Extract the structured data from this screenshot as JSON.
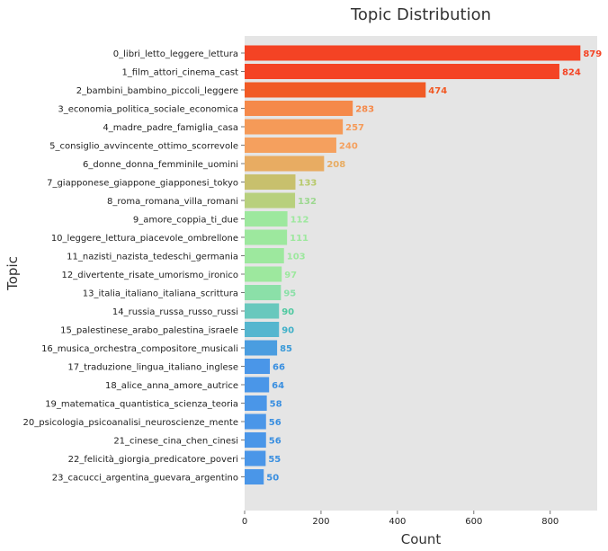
{
  "chart_data": {
    "type": "bar",
    "orientation": "horizontal",
    "title": "Topic Distribution",
    "xlabel": "Count",
    "ylabel": "Topic",
    "xlim": [
      0,
      923
    ],
    "xticks": [
      0,
      200,
      400,
      600,
      800
    ],
    "grid": false,
    "legend": "none",
    "background": "#e5e5e5",
    "categories": [
      "0_libri_letto_leggere_lettura",
      "1_film_attori_cinema_cast",
      "2_bambini_bambino_piccoli_leggere",
      "3_economia_politica_sociale_economica",
      "4_madre_padre_famiglia_casa",
      "5_consiglio_avvincente_ottimo_scorrevole",
      "6_donne_donna_femminile_uomini",
      "7_giapponese_giappone_giapponesi_tokyo",
      "8_roma_romana_villa_romani",
      "9_amore_coppia_ti_due",
      "10_leggere_lettura_piacevole_ombrellone",
      "11_nazisti_nazista_tedeschi_germania",
      "12_divertente_risate_umorismo_ironico",
      "13_italia_italiano_italiana_scrittura",
      "14_russia_russa_russo_russi",
      "15_palestinese_arabo_palestina_israele",
      "16_musica_orchestra_compositore_musicali",
      "17_traduzione_lingua_italiano_inglese",
      "18_alice_anna_amore_autrice",
      "19_matematica_quantistica_scienza_teoria",
      "20_psicologia_psicoanalisi_neuroscienze_mente",
      "21_cinese_cina_chen_cinesi",
      "22_felicità_giorgia_predicatore_poveri",
      "23_cacucci_argentina_guevara_argentino"
    ],
    "values": [
      879,
      824,
      474,
      283,
      257,
      240,
      208,
      133,
      132,
      112,
      111,
      103,
      97,
      95,
      90,
      90,
      85,
      66,
      64,
      58,
      56,
      56,
      55,
      50
    ],
    "colors": [
      "#f44324",
      "#f44324",
      "#f15a25",
      "#f5894a",
      "#f59a58",
      "#f5a05e",
      "#e8ac62",
      "#c8c06d",
      "#b8d07d",
      "#9de89e",
      "#9de89e",
      "#9de89e",
      "#9de89e",
      "#8be0a8",
      "#68c8bd",
      "#55b6cf",
      "#4a9de0",
      "#4a96e8",
      "#4a96e8",
      "#4a96e8",
      "#4a96e8",
      "#4a96e8",
      "#4a96e8",
      "#4a96e8"
    ],
    "label_colors": [
      "#f44324",
      "#f44324",
      "#f15a25",
      "#f5894a",
      "#f59a58",
      "#f5a05e",
      "#e8ac62",
      "#b7c96a",
      "#9dd890",
      "#9de89e",
      "#9de89e",
      "#9de89e",
      "#9de89e",
      "#8be0a8",
      "#4fc9a0",
      "#3fb0c8",
      "#3a9ad8",
      "#3a8fe0",
      "#3a8fe0",
      "#3a8fe0",
      "#3a8fe0",
      "#3a8fe0",
      "#3a8fe0",
      "#3a8fe0"
    ]
  }
}
